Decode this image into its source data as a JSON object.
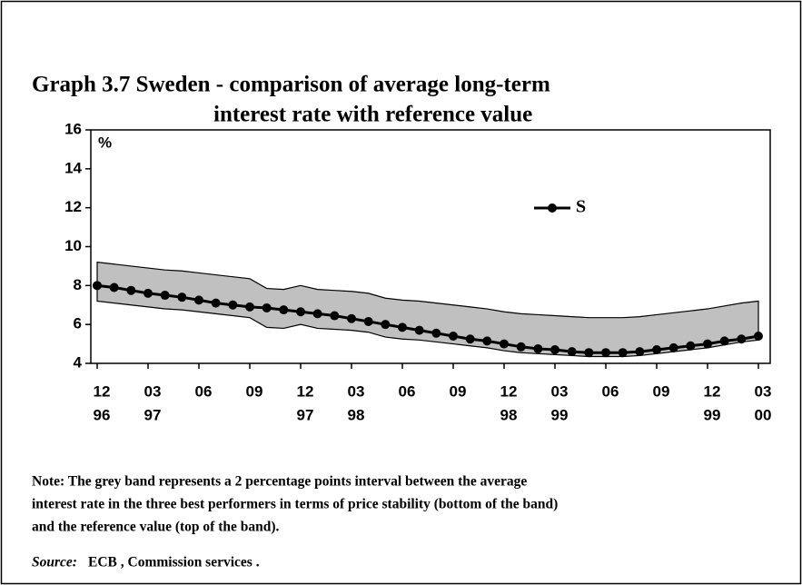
{
  "chart_data": {
    "type": "line",
    "title": [
      "Graph 3.7   Sweden - comparison of average long-term",
      "interest  rate with reference value"
    ],
    "y_unit": "%",
    "categories": [
      [
        "12",
        "96"
      ],
      null,
      null,
      [
        "03",
        "97"
      ],
      null,
      null,
      [
        "06"
      ],
      null,
      null,
      [
        "09"
      ],
      null,
      null,
      [
        "12",
        "97"
      ],
      null,
      null,
      [
        "03",
        "98"
      ],
      null,
      null,
      [
        "06"
      ],
      null,
      null,
      [
        "09"
      ],
      null,
      null,
      [
        "12",
        "98"
      ],
      null,
      null,
      [
        "03",
        "99"
      ],
      null,
      null,
      [
        "06"
      ],
      null,
      null,
      [
        "09"
      ],
      null,
      null,
      [
        "12",
        "99"
      ],
      null,
      null,
      [
        "03",
        "00"
      ]
    ],
    "series": [
      {
        "name": "S",
        "color": "#000000",
        "values": [
          8.0,
          7.9,
          7.75,
          7.6,
          7.5,
          7.4,
          7.25,
          7.1,
          7.0,
          6.9,
          6.85,
          6.75,
          6.65,
          6.55,
          6.45,
          6.3,
          6.15,
          6.0,
          5.85,
          5.7,
          5.55,
          5.4,
          5.25,
          5.15,
          5.0,
          4.85,
          4.75,
          4.7,
          4.6,
          4.55,
          4.55,
          4.55,
          4.6,
          4.7,
          4.8,
          4.9,
          5.0,
          5.15,
          5.25,
          5.4
        ]
      }
    ],
    "band": {
      "color": "#c0c0c0",
      "upper": [
        9.2,
        9.1,
        9.0,
        8.9,
        8.8,
        8.75,
        8.65,
        8.55,
        8.45,
        8.35,
        7.85,
        7.8,
        8.0,
        7.8,
        7.75,
        7.7,
        7.6,
        7.35,
        7.25,
        7.2,
        7.1,
        7.0,
        6.9,
        6.8,
        6.65,
        6.55,
        6.5,
        6.45,
        6.4,
        6.35,
        6.35,
        6.35,
        6.4,
        6.5,
        6.6,
        6.7,
        6.8,
        6.95,
        7.1,
        7.2
      ],
      "lower": [
        7.2,
        7.1,
        7.0,
        6.9,
        6.8,
        6.75,
        6.65,
        6.55,
        6.45,
        6.35,
        5.85,
        5.8,
        6.0,
        5.8,
        5.75,
        5.7,
        5.6,
        5.35,
        5.25,
        5.2,
        5.1,
        5.0,
        4.9,
        4.8,
        4.65,
        4.55,
        4.5,
        4.45,
        4.4,
        4.35,
        4.35,
        4.35,
        4.4,
        4.5,
        4.6,
        4.7,
        4.8,
        4.95,
        5.1,
        5.2
      ]
    },
    "ylim": [
      4,
      16
    ],
    "yticks": [
      4,
      6,
      8,
      10,
      12,
      14,
      16
    ],
    "grid": false,
    "note": [
      "Note:   The grey band represents a 2 percentage points interval between the average",
      "interest rate in the three best  performers in terms of price stability  (bottom of the band)",
      "and the reference value  (top of the band)."
    ],
    "source_label": "Source:",
    "source": "ECB , Commission services ."
  }
}
